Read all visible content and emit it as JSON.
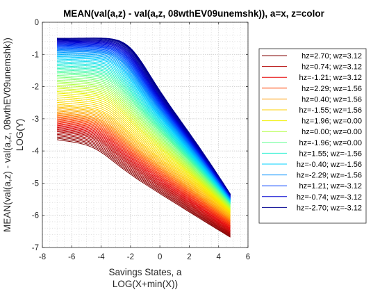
{
  "chart_data": {
    "type": "line",
    "title": "MEAN(val(a,z) - val(a,z, 08wthEV09unemshk)), a=x, z=color",
    "xlabel": [
      "Savings States, a",
      "LOG(X+min(X))"
    ],
    "ylabel": [
      "MEAN(val(a,z) - val(a,z, 08wthEV09unemshk))",
      "LOG(Y)"
    ],
    "xlim": [
      -8,
      6
    ],
    "ylim": [
      -7,
      0
    ],
    "xticks": [
      "-8",
      "-6",
      "-4",
      "-2",
      "0",
      "2",
      "4",
      "6"
    ],
    "yticks": [
      "0",
      "-1",
      "-2",
      "-3",
      "-4",
      "-5",
      "-6",
      "-7"
    ],
    "grid": "minor-dotted",
    "legend_position": "right",
    "x_range_of_lines": [
      -7,
      4.8
    ],
    "series": [
      {
        "name": "hz=2.70; wz=3.12",
        "color": "#800000",
        "y_start": -3.65,
        "y_end": -6.68
      },
      {
        "name": "hz=0.74; wz=3.12",
        "color": "#b30000",
        "y_start": -3.4,
        "y_end": -6.55
      },
      {
        "name": "hz=-1.21; wz=3.12",
        "color": "#e60000",
        "y_start": -3.2,
        "y_end": -6.4
      },
      {
        "name": "hz=2.29; wz=1.56",
        "color": "#ff4000",
        "y_start": -3.0,
        "y_end": -6.25
      },
      {
        "name": "hz=0.40; wz=1.56",
        "color": "#ff9900",
        "y_start": -2.8,
        "y_end": -6.1
      },
      {
        "name": "hz=-1.55; wz=1.56",
        "color": "#ffd000",
        "y_start": -2.55,
        "y_end": -5.95
      },
      {
        "name": "hz=1.96; wz=0.00",
        "color": "#f0f000",
        "y_start": -2.2,
        "y_end": -5.85
      },
      {
        "name": "hz=0.00; wz=0.00",
        "color": "#b0ff40",
        "y_start": -1.9,
        "y_end": -5.75
      },
      {
        "name": "hz=-1.96; wz=0.00",
        "color": "#60ff90",
        "y_start": -1.6,
        "y_end": -5.65
      },
      {
        "name": "hz=1.55; wz=-1.56",
        "color": "#20f0d0",
        "y_start": -1.35,
        "y_end": -5.6
      },
      {
        "name": "hz=-0.40; wz=-1.56",
        "color": "#00d0ff",
        "y_start": -1.1,
        "y_end": -5.55
      },
      {
        "name": "hz=-2.29; wz=-1.56",
        "color": "#0090ff",
        "y_start": -0.9,
        "y_end": -5.5
      },
      {
        "name": "hz=1.21; wz=-3.12",
        "color": "#0040ff",
        "y_start": -0.75,
        "y_end": -5.45
      },
      {
        "name": "hz=-0.74; wz=-3.12",
        "color": "#0000d0",
        "y_start": -0.62,
        "y_end": -5.4
      },
      {
        "name": "hz=-2.70; wz=-3.12",
        "color": "#00008f",
        "y_start": -0.5,
        "y_end": -5.35
      }
    ]
  }
}
